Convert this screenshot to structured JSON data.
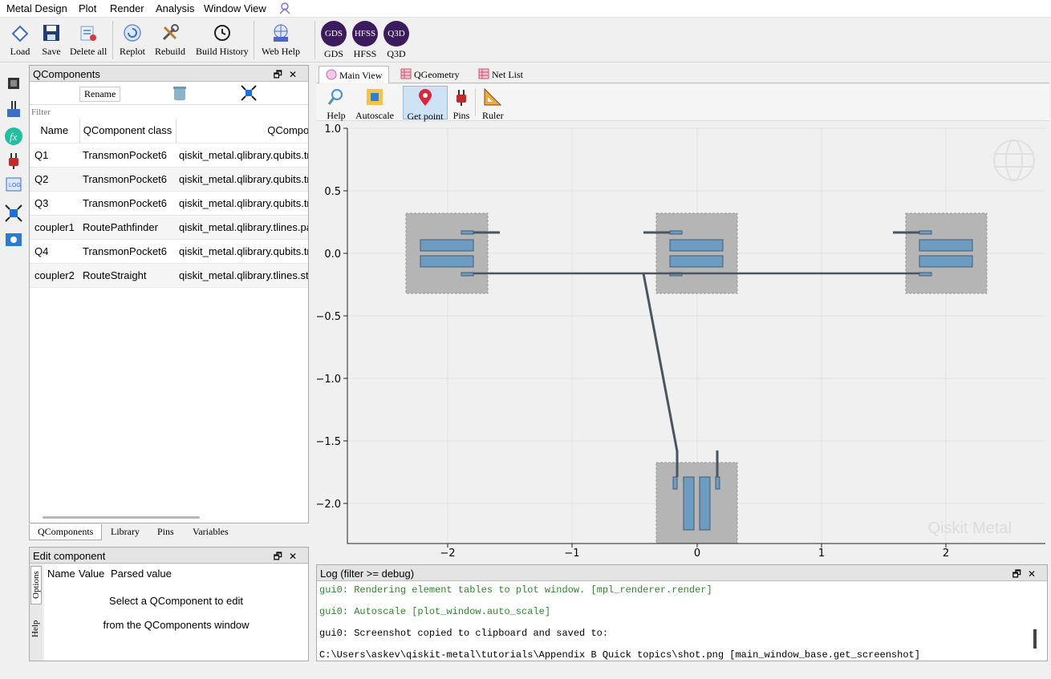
{
  "menu": [
    "Metal Design",
    "Plot",
    "Render",
    "Analysis",
    "Window View"
  ],
  "toolbar": {
    "buttons": [
      "Load",
      "Save",
      "Delete all",
      "Replot",
      "Rebuild",
      "Build History",
      "Web Help"
    ],
    "renderers": [
      {
        "badge": "GDS",
        "label": "GDS"
      },
      {
        "badge": "HFSS",
        "label": "HFSS"
      },
      {
        "badge": "Q3D",
        "label": "Q3D"
      }
    ]
  },
  "qcomponents": {
    "title": "QComponents",
    "rename": "Rename",
    "filter_placeholder": "Filter",
    "columns": [
      "Name",
      "QComponent class",
      "QComponent m"
    ],
    "rows": [
      {
        "name": "Q1",
        "cls": "TransmonPocket6",
        "mod": "qiskit_metal.qlibrary.qubits.tr"
      },
      {
        "name": "Q2",
        "cls": "TransmonPocket6",
        "mod": "qiskit_metal.qlibrary.qubits.tr"
      },
      {
        "name": "Q3",
        "cls": "TransmonPocket6",
        "mod": "qiskit_metal.qlibrary.qubits.tr"
      },
      {
        "name": "coupler1",
        "cls": "RoutePathfinder",
        "mod": "qiskit_metal.qlibrary.tlines.pa"
      },
      {
        "name": "Q4",
        "cls": "TransmonPocket6",
        "mod": "qiskit_metal.qlibrary.qubits.tr"
      },
      {
        "name": "coupler2",
        "cls": "RouteStraight",
        "mod": "qiskit_metal.qlibrary.tlines.stra"
      }
    ],
    "tabs": [
      "QComponents",
      "Library",
      "Pins",
      "Variables"
    ]
  },
  "edit": {
    "title": "Edit component",
    "columns": [
      "Name",
      "Value",
      "Parsed value"
    ],
    "msg1": "Select a QComponent to edit",
    "msg2": "from the QComponents window",
    "side_tabs": [
      "Options",
      "Help"
    ]
  },
  "plot": {
    "tabs": [
      "Main View",
      "QGeometry",
      "Net List"
    ],
    "tools": [
      "Help",
      "Autoscale",
      "Get point",
      "Pins",
      "Ruler"
    ],
    "watermark": "Qiskit Metal",
    "xticks": [
      "−2",
      "−1",
      "0",
      "1",
      "2"
    ],
    "yticks": [
      "1.0",
      "0.5",
      "0.0",
      "−0.5",
      "−1.0",
      "−1.5",
      "−2.0"
    ]
  },
  "log": {
    "title": "Log  (filter >= debug)",
    "lines": [
      "gui0: Rendering element tables to plot window. [mpl_renderer.render]",
      "gui0: Autoscale [plot_window.auto_scale]",
      "gui0: Screenshot copied to clipboard and saved to:",
      " C:\\Users\\askev\\qiskit-metal\\tutorials\\Appendix B Quick topics\\shot.png [main_window_base.get_screenshot]"
    ]
  },
  "colors": {
    "accent": "#3b1b5e",
    "log_green": "#2a8a2a",
    "pad": "#6e9bc0",
    "ground": "#b5b5b5"
  }
}
